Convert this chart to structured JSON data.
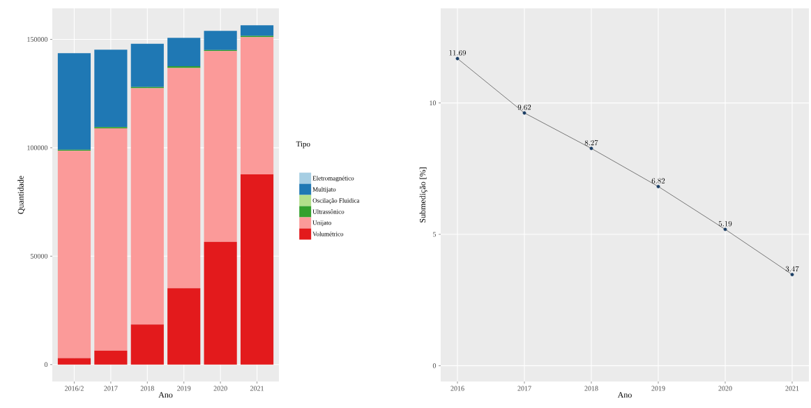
{
  "chart_data": [
    {
      "type": "bar",
      "stacked": true,
      "xlabel": "Ano",
      "ylabel": "Quantidade",
      "legend_title": "Tipo",
      "legend": "right",
      "grid": true,
      "categories": [
        "2016/2",
        "2017",
        "2018",
        "2019",
        "2020",
        "2021"
      ],
      "ylim": [
        -7800,
        164300
      ],
      "yticks": [
        0,
        50000,
        100000,
        150000
      ],
      "series": [
        {
          "name": "Volumétrico",
          "color": "#e31a1c",
          "values": [
            3000,
            6400,
            18500,
            35200,
            56600,
            87700
          ]
        },
        {
          "name": "Unijato",
          "color": "#fb9a99",
          "values": [
            95600,
            102600,
            109000,
            101600,
            88000,
            63300
          ]
        },
        {
          "name": "Ultrassônico",
          "color": "#33a02c",
          "values": [
            500,
            500,
            500,
            800,
            500,
            600
          ]
        },
        {
          "name": "Oscilação Fluidica",
          "color": "#b2df8a",
          "values": [
            0,
            0,
            0,
            0,
            0,
            0
          ]
        },
        {
          "name": "Multijato",
          "color": "#1f78b4",
          "values": [
            44500,
            35700,
            20000,
            13100,
            8800,
            4900
          ]
        },
        {
          "name": "Eletromagnético",
          "color": "#a6cee3",
          "values": [
            0,
            0,
            0,
            0,
            0,
            0
          ]
        }
      ]
    },
    {
      "type": "line",
      "xlabel": "Ano",
      "ylabel": "Submedição [%]",
      "grid": true,
      "marker": "circle",
      "data_labels": true,
      "color": "#1c3f66",
      "x": [
        2016,
        2017,
        2018,
        2019,
        2020,
        2021
      ],
      "values": [
        11.69,
        9.62,
        8.27,
        6.82,
        5.19,
        3.47
      ],
      "xlim": [
        2015.75,
        2021.25
      ],
      "xticks": [
        2016,
        2017,
        2018,
        2019,
        2020,
        2021
      ],
      "ylim": [
        -0.6,
        13.6
      ],
      "yticks": [
        0,
        5,
        10
      ]
    }
  ]
}
